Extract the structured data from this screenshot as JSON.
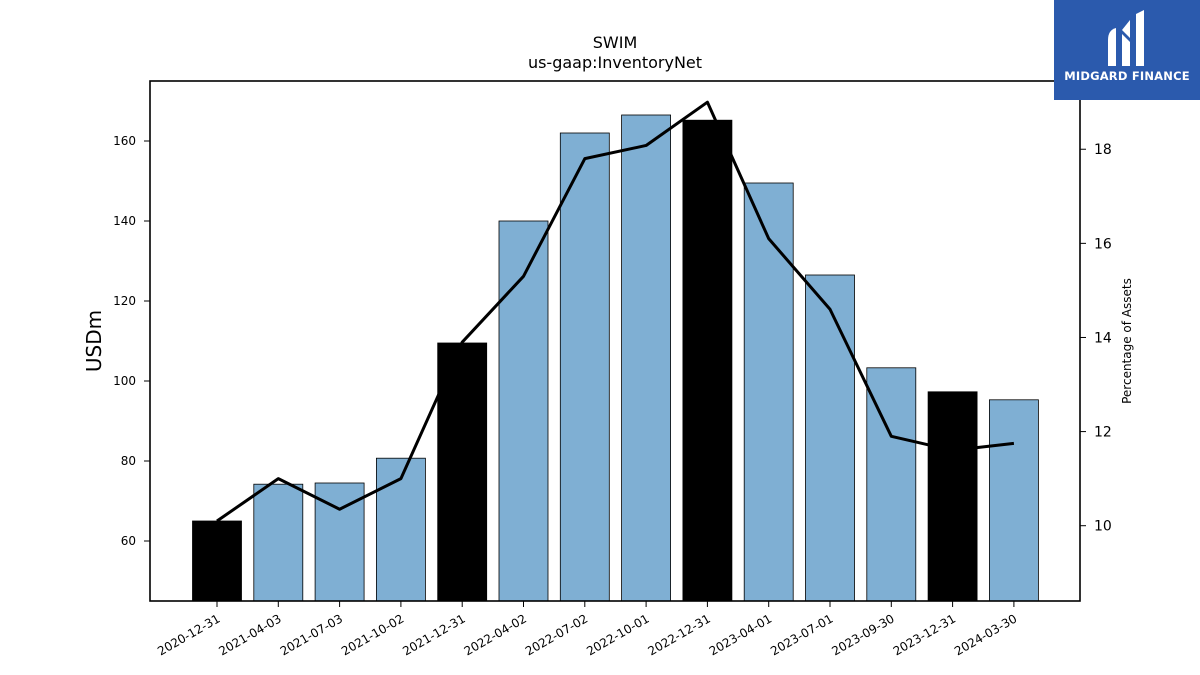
{
  "chart_data": {
    "type": "bar",
    "title": "SWIM",
    "subtitle": "us-gaap:InventoryNet",
    "ylabel": "USDm",
    "y2label": "Percentage of Assets",
    "categories": [
      "2020-12-31",
      "2021-04-03",
      "2021-07-03",
      "2021-10-02",
      "2021-12-31",
      "2022-04-02",
      "2022-07-02",
      "2022-10-01",
      "2022-12-31",
      "2023-04-01",
      "2023-07-01",
      "2023-09-30",
      "2023-12-31",
      "2024-03-30"
    ],
    "series": [
      {
        "type": "bar",
        "values": [
          65,
          74.2,
          74.5,
          80.7,
          109.5,
          140,
          162,
          166.5,
          165.2,
          149.5,
          126.5,
          103.3,
          97.3,
          95.3
        ],
        "highlight": [
          true,
          false,
          false,
          false,
          true,
          false,
          false,
          false,
          true,
          false,
          false,
          false,
          true,
          false
        ]
      },
      {
        "type": "line",
        "axis": "right",
        "values": [
          10.1,
          11.0,
          10.35,
          11.0,
          13.9,
          15.3,
          17.8,
          18.08,
          19.0,
          16.1,
          14.6,
          11.9,
          11.6,
          11.75
        ]
      }
    ],
    "ylim": [
      45,
      175
    ],
    "yticks": [
      60,
      80,
      100,
      120,
      140,
      160
    ],
    "y2lim": [
      8.4,
      19.45
    ],
    "y2ticks": [
      10,
      12,
      14,
      16,
      18
    ],
    "colors": {
      "bar": "#7fafd3",
      "highlight_bar": "#000000",
      "line": "#000000"
    },
    "grid": false
  },
  "logo": {
    "text": "MIDGARD FINANCE",
    "background": "#2b5aad"
  }
}
